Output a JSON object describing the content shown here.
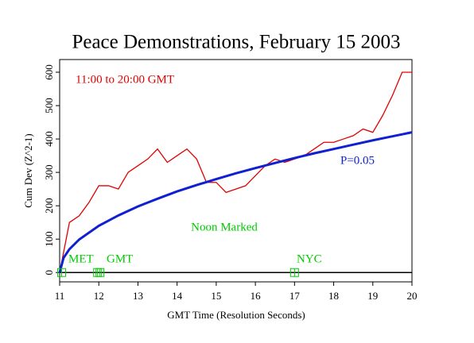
{
  "chart_data": {
    "type": "line",
    "title": "Peace Demonstrations, February 15 2003",
    "xlabel": "GMT Time (Resolution Seconds)",
    "ylabel": "Cum Dev (Z^2-1)",
    "xlim": [
      11,
      20
    ],
    "ylim": [
      -28,
      638
    ],
    "xticks": [
      11,
      12,
      13,
      14,
      15,
      16,
      17,
      18,
      19,
      20
    ],
    "yticks": [
      0,
      100,
      200,
      300,
      400,
      500,
      600
    ],
    "series": [
      {
        "name": "Cum Dev",
        "color": "#e00000",
        "x": [
          11,
          11.25,
          11.5,
          11.75,
          12,
          12.25,
          12.5,
          12.75,
          13,
          13.25,
          13.5,
          13.75,
          14,
          14.25,
          14.5,
          14.75,
          15,
          15.25,
          15.5,
          15.75,
          16,
          16.25,
          16.5,
          16.75,
          17,
          17.25,
          17.5,
          17.75,
          18,
          18.25,
          18.5,
          18.75,
          19,
          19.25,
          19.5,
          19.75,
          20
        ],
        "values": [
          0,
          150,
          170,
          210,
          260,
          260,
          250,
          300,
          320,
          340,
          370,
          330,
          350,
          370,
          340,
          270,
          270,
          240,
          250,
          260,
          290,
          320,
          340,
          330,
          340,
          350,
          370,
          390,
          390,
          400,
          410,
          430,
          420,
          470,
          530,
          600,
          600
        ]
      },
      {
        "name": "P=0.05",
        "color": "#1020d0",
        "x": [
          11,
          11.1,
          11.25,
          11.5,
          12,
          12.5,
          13,
          13.5,
          14,
          14.5,
          15,
          15.5,
          16,
          16.5,
          17,
          17.5,
          18,
          18.5,
          19,
          19.5,
          20
        ],
        "values": [
          0,
          44,
          70,
          99,
          140,
          171,
          198,
          221,
          243,
          262,
          280,
          297,
          313,
          328,
          343,
          357,
          370,
          383,
          396,
          408,
          420
        ]
      }
    ],
    "markers": {
      "color": "#00cc00",
      "x": [
        11.05,
        11.97,
        12.03,
        17.0
      ]
    },
    "annotations": [
      "11:00 to 20:00 GMT",
      "Noon Marked",
      "MET",
      "GMT",
      "NYC"
    ]
  }
}
